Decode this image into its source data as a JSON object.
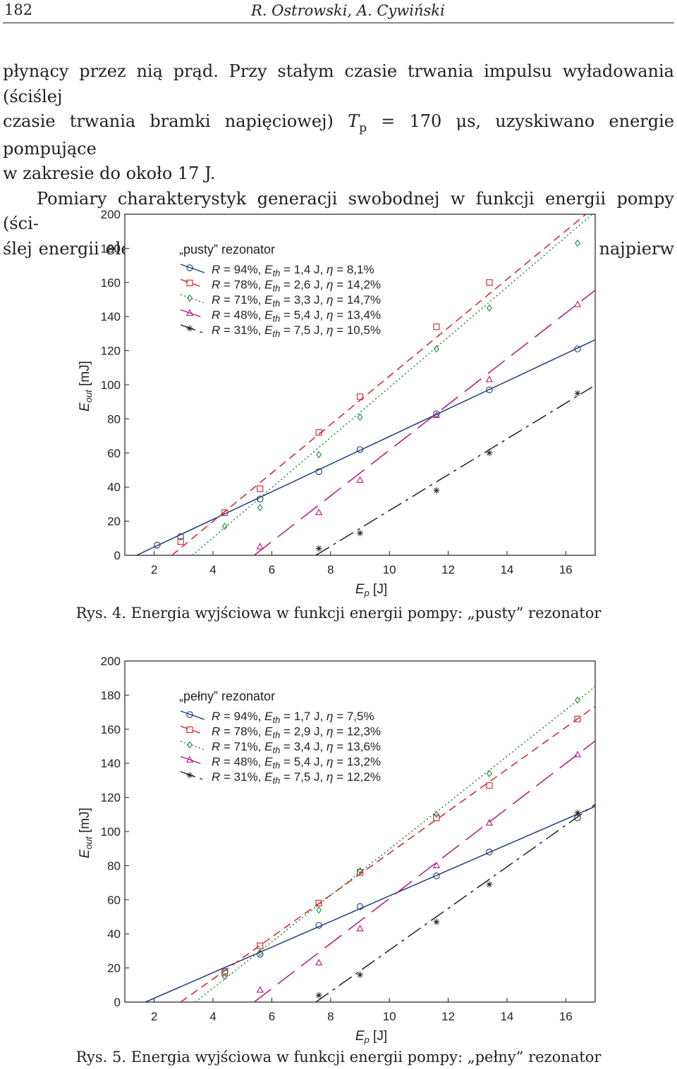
{
  "header": {
    "page_number": "182",
    "running_head": "R. Ostrowski, A. Cywiński"
  },
  "body": {
    "line1": "płynący przez nią prąd. Przy stałym czasie trwania impulsu wyładowania (ściślej",
    "line2_a": "czasie trwania bramki napięciowej) ",
    "line2_T": "T",
    "line2_sub": "p",
    "line2_b": " = 170 μs, uzyskiwano energie pompujące",
    "line3": "w zakresie do około 17 J.",
    "line4": "Pomiary charakterystyk generacji swobodnej w funkcji energii pompy (ści-",
    "line5": "ślej energii elektrycznej wydzielanej w lampie błyskowej) wykonano najpierw"
  },
  "figures": {
    "fig4": {
      "caption": "Rys. 4. Energia wyjściowa w funkcji energii pompy: „pusty” rezonator"
    },
    "fig5": {
      "caption": "Rys. 5. Energia wyjściowa w funkcji energii pompy: „pełny” rezonator"
    }
  },
  "chart_data": [
    {
      "type": "scatter",
      "title": "„pusty” rezonator",
      "xlabel": "Ep [J]",
      "ylabel": "Eout [mJ]",
      "xlim": [
        1,
        17
      ],
      "ylim": [
        0,
        200
      ],
      "xticks": [
        2,
        4,
        6,
        8,
        10,
        12,
        14,
        16
      ],
      "yticks": [
        0,
        20,
        40,
        60,
        80,
        100,
        120,
        140,
        160,
        180,
        200
      ],
      "series": [
        {
          "name": "R = 94%",
          "legend": [
            "R",
            " = 94%,  ",
            "E",
            "th",
            " = 1,4 J,  ",
            "η",
            " = 8,1%"
          ],
          "marker": "circle",
          "color": "#1f3c7d",
          "dash": "",
          "fit": {
            "eth": 1.4,
            "slope": 8.1,
            "xend": 17.0
          },
          "x": [
            2.1,
            2.9,
            5.6,
            7.6,
            9.0,
            11.6,
            13.4,
            16.4
          ],
          "y": [
            6,
            11,
            33,
            49,
            62,
            83,
            97,
            121
          ]
        },
        {
          "name": "R = 78%",
          "legend": [
            "R",
            " = 78%,  ",
            "E",
            "th",
            " = 2,6 J,  ",
            "η",
            " = 14,2%"
          ],
          "marker": "square",
          "color": "#d2232a",
          "dash": "11,7",
          "fit": {
            "eth": 2.6,
            "slope": 14.2,
            "xend": 16.8
          },
          "x": [
            2.9,
            4.4,
            5.6,
            7.6,
            9.0,
            11.6,
            13.4
          ],
          "y": [
            8,
            25,
            39,
            72,
            93,
            134,
            160
          ]
        },
        {
          "name": "R = 71%",
          "legend": [
            "R",
            " = 71%,  ",
            "E",
            "th",
            " = 3,3 J,  ",
            "η",
            " = 14,7%"
          ],
          "marker": "diamond",
          "color": "#1e8a3c",
          "dash": "2,3.5",
          "fit": {
            "eth": 3.3,
            "slope": 14.7,
            "xend": 17.0
          },
          "x": [
            4.4,
            5.6,
            7.6,
            9.0,
            11.6,
            13.4,
            16.4
          ],
          "y": [
            17,
            28,
            59,
            81,
            121,
            145,
            183
          ]
        },
        {
          "name": "R = 48%",
          "legend": [
            "R",
            " = 48%,  ",
            "E",
            "th",
            " = 5,4 J,  ",
            "η",
            " = 13,4%"
          ],
          "marker": "triangle",
          "color": "#b0177d",
          "dash": "30,12",
          "fit": {
            "eth": 5.4,
            "slope": 13.4,
            "xend": 17.0
          },
          "x": [
            5.6,
            7.6,
            9.0,
            11.6,
            13.4,
            16.4
          ],
          "y": [
            5,
            25,
            44,
            82,
            103,
            147
          ]
        },
        {
          "name": "R = 31%",
          "legend": [
            "R",
            " = 31%,  ",
            "E",
            "th",
            " = 7,5 J,  ",
            "η",
            " = 10,5%"
          ],
          "marker": "asterisk",
          "color": "#231f20",
          "dash": "22,7,4,7",
          "fit": {
            "eth": 7.5,
            "slope": 10.5,
            "xend": 16.9
          },
          "x": [
            7.6,
            9.0,
            11.6,
            13.4,
            16.4
          ],
          "y": [
            4,
            13,
            38,
            60,
            95
          ]
        }
      ]
    },
    {
      "type": "scatter",
      "title": "„pełny” rezonator",
      "xlabel": "Ep [J]",
      "ylabel": "Eout [mJ]",
      "xlim": [
        1,
        17
      ],
      "ylim": [
        0,
        200
      ],
      "xticks": [
        2,
        4,
        6,
        8,
        10,
        12,
        14,
        16
      ],
      "yticks": [
        0,
        20,
        40,
        60,
        80,
        100,
        120,
        140,
        160,
        180,
        200
      ],
      "series": [
        {
          "name": "R = 94%",
          "legend": [
            "R",
            " = 94%,  ",
            "E",
            "th",
            " = 1,7 J,  ",
            "η",
            " = 7,5%"
          ],
          "marker": "circle",
          "color": "#1f3c7d",
          "dash": "",
          "fit": {
            "eth": 1.7,
            "slope": 7.5,
            "xend": 17.0
          },
          "x": [
            4.4,
            5.6,
            7.6,
            9.0,
            11.6,
            13.4,
            16.4
          ],
          "y": [
            18,
            28,
            45,
            56,
            74,
            88,
            108
          ]
        },
        {
          "name": "R = 78%",
          "legend": [
            "R",
            " = 78%,  ",
            "E",
            "th",
            " = 2,9 J,  ",
            "η",
            " = 12,3%"
          ],
          "marker": "square",
          "color": "#d2232a",
          "dash": "11,7",
          "fit": {
            "eth": 2.9,
            "slope": 12.3,
            "xend": 17.0
          },
          "x": [
            4.4,
            5.6,
            7.6,
            9.0,
            11.6,
            13.4,
            16.4
          ],
          "y": [
            17,
            33,
            58,
            76,
            108,
            127,
            166
          ]
        },
        {
          "name": "R = 71%",
          "legend": [
            "R",
            " = 71%,  ",
            "E",
            "th",
            " = 3,4 J,  ",
            "η",
            " = 13,6%"
          ],
          "marker": "diamond",
          "color": "#1e8a3c",
          "dash": "2,3.5",
          "fit": {
            "eth": 3.4,
            "slope": 13.6,
            "xend": 17.0
          },
          "x": [
            4.4,
            5.6,
            7.6,
            9.0,
            11.6,
            13.4,
            16.4
          ],
          "y": [
            15,
            29,
            54,
            77,
            110,
            134,
            177
          ]
        },
        {
          "name": "R = 48%",
          "legend": [
            "R",
            " = 48%,  ",
            "E",
            "th",
            " = 5,4 J,  ",
            "η",
            " = 13,2%"
          ],
          "marker": "triangle",
          "color": "#b0177d",
          "dash": "30,12",
          "fit": {
            "eth": 5.4,
            "slope": 13.2,
            "xend": 17.0
          },
          "x": [
            5.6,
            7.6,
            9.0,
            11.6,
            13.4,
            16.4
          ],
          "y": [
            7,
            23,
            43,
            80,
            105,
            145
          ]
        },
        {
          "name": "R = 31%",
          "legend": [
            "R",
            " = 31%,  ",
            "E",
            "th",
            " = 7,5 J,  ",
            "η",
            " = 12,2%"
          ],
          "marker": "asterisk",
          "color": "#231f20",
          "dash": "22,7,4,7",
          "fit": {
            "eth": 7.5,
            "slope": 12.2,
            "xend": 17.0
          },
          "x": [
            7.6,
            9.0,
            11.6,
            13.4,
            16.4
          ],
          "y": [
            4,
            16,
            47,
            69,
            111
          ]
        }
      ]
    }
  ]
}
